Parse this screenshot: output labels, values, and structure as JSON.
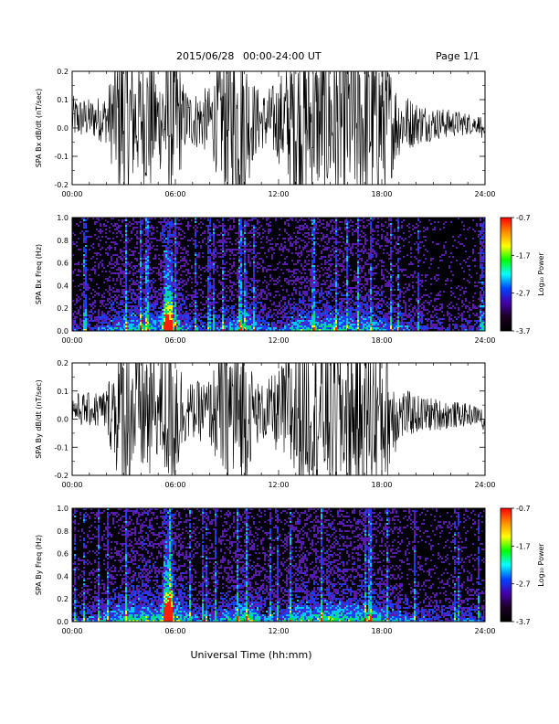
{
  "header": {
    "date": "2015/06/28",
    "range": "00:00-24:00 UT",
    "page": "Page 1/1"
  },
  "xaxis": {
    "label": "Universal Time (hh:mm)",
    "ticks": [
      "00:00",
      "06:00",
      "12:00",
      "18:00",
      "24:00"
    ]
  },
  "colorbar": {
    "label": "Log₁₀ Power",
    "ticks": [
      "-0.7",
      "-1.7",
      "-2.7",
      "-3.7"
    ],
    "colors": [
      "#ff0000",
      "#ff8800",
      "#ffff00",
      "#00ff00",
      "#00ffff",
      "#0044ff",
      "#4400aa",
      "#1a0020",
      "#000000"
    ]
  },
  "chart_data": [
    {
      "type": "line",
      "title": "",
      "ylabel": "SPA Bx dB/dt (nT/sec)",
      "xlabel": "",
      "xlim": [
        0,
        24
      ],
      "ylim": [
        -0.2,
        0.2
      ],
      "yticks": [
        "-0.2",
        "-0.1",
        "0.0",
        "0.1",
        "0.2"
      ],
      "series_color": "#000000",
      "envelope": {
        "t_hours": [
          0,
          1,
          2,
          2.8,
          3.2,
          4,
          4.5,
          5,
          5.5,
          6,
          6.5,
          7,
          8,
          9,
          9.5,
          10,
          10.5,
          11,
          12,
          13,
          14,
          15,
          16,
          17,
          18,
          19,
          20,
          21,
          22,
          23,
          23.8,
          24
        ],
        "amplitude": [
          0.08,
          0.07,
          0.09,
          0.3,
          0.3,
          0.2,
          0.3,
          0.15,
          0.3,
          0.3,
          0.12,
          0.1,
          0.12,
          0.3,
          0.3,
          0.3,
          0.15,
          0.1,
          0.15,
          0.3,
          0.25,
          0.3,
          0.3,
          0.3,
          0.3,
          0.12,
          0.08,
          0.06,
          0.05,
          0.04,
          0.03,
          0.01
        ]
      }
    },
    {
      "type": "heatmap",
      "title": "",
      "ylabel": "SPA Bx Freq (Hz)",
      "xlabel": "",
      "xlim": [
        0,
        24
      ],
      "ylim": [
        0,
        1.0
      ],
      "yticks": [
        "0.0",
        "0.2",
        "0.4",
        "0.6",
        "0.8",
        "1.0"
      ],
      "zlim": [
        -3.7,
        -0.7
      ],
      "activity": {
        "t_hours": [
          0,
          1,
          2,
          3,
          4,
          5,
          5.5,
          6,
          7,
          8,
          9,
          10,
          11,
          12,
          13,
          14,
          15,
          16,
          17,
          18,
          19,
          20,
          21,
          22,
          23,
          24
        ],
        "level": [
          0.3,
          0.3,
          0.4,
          0.5,
          0.6,
          0.5,
          1.0,
          0.6,
          0.35,
          0.3,
          0.45,
          0.6,
          0.4,
          0.3,
          0.55,
          0.5,
          0.6,
          0.5,
          0.55,
          0.45,
          0.35,
          0.3,
          0.25,
          0.2,
          0.3,
          0.2
        ]
      }
    },
    {
      "type": "line",
      "title": "",
      "ylabel": "SPA By dB/dt (nT/sec)",
      "xlabel": "",
      "xlim": [
        0,
        24
      ],
      "ylim": [
        -0.2,
        0.2
      ],
      "yticks": [
        "-0.2",
        "-0.1",
        "0.0",
        "0.1",
        "0.2"
      ],
      "series_color": "#000000",
      "envelope": {
        "t_hours": [
          0,
          1,
          2,
          2.8,
          3.2,
          4,
          4.5,
          5,
          5.5,
          6,
          6.5,
          7,
          8,
          9,
          9.5,
          10,
          10.5,
          11,
          12,
          13,
          14,
          15,
          16,
          17,
          18,
          19,
          20,
          21,
          22,
          23,
          23.8,
          24
        ],
        "amplitude": [
          0.06,
          0.06,
          0.08,
          0.3,
          0.3,
          0.25,
          0.3,
          0.15,
          0.3,
          0.3,
          0.12,
          0.1,
          0.12,
          0.3,
          0.3,
          0.3,
          0.14,
          0.1,
          0.15,
          0.3,
          0.25,
          0.3,
          0.3,
          0.3,
          0.3,
          0.1,
          0.07,
          0.06,
          0.05,
          0.04,
          0.03,
          0.02
        ]
      }
    },
    {
      "type": "heatmap",
      "title": "",
      "ylabel": "SPA By Freq (Hz)",
      "xlabel": "",
      "xlim": [
        0,
        24
      ],
      "ylim": [
        0,
        1.0
      ],
      "yticks": [
        "0.0",
        "0.2",
        "0.4",
        "0.6",
        "0.8",
        "1.0"
      ],
      "zlim": [
        -3.7,
        -0.7
      ],
      "activity": {
        "t_hours": [
          0,
          1,
          2,
          3,
          4,
          5,
          5.5,
          6,
          7,
          8,
          9,
          10,
          11,
          12,
          13,
          14,
          15,
          16,
          17,
          18,
          19,
          20,
          21,
          22,
          23,
          24
        ],
        "level": [
          0.3,
          0.35,
          0.45,
          0.55,
          0.65,
          0.55,
          1.0,
          0.65,
          0.4,
          0.35,
          0.5,
          0.65,
          0.45,
          0.35,
          0.6,
          0.55,
          0.65,
          0.55,
          0.6,
          0.5,
          0.4,
          0.35,
          0.3,
          0.3,
          0.35,
          0.25
        ]
      }
    }
  ]
}
